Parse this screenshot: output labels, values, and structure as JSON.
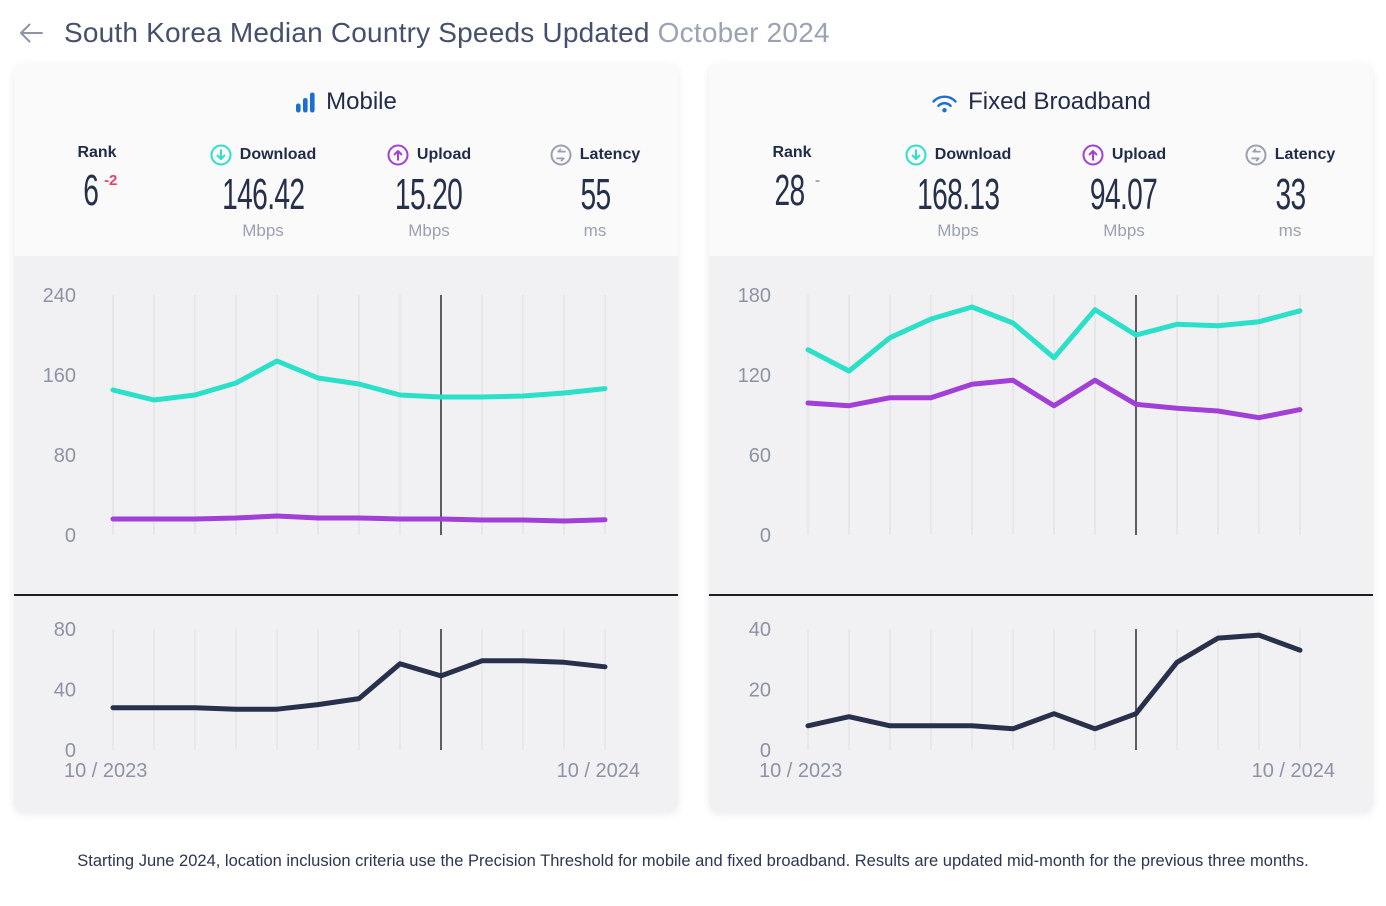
{
  "page": {
    "title_main": "South Korea Median Country Speeds Updated",
    "title_period": "October 2024",
    "footnote": "Starting June 2024, location inclusion criteria use the Precision Threshold for mobile and fixed broadband. Results are updated mid-month for the previous three months."
  },
  "colors": {
    "accent_blue": "#1b6fd0",
    "teal": "#2be0c9",
    "purple": "#a13fd6",
    "latency_navy": "#28304c",
    "rank_change_red": "#e8416a",
    "rank_change_gray": "#9aa0af",
    "grid": "#e4e4e7",
    "axis_label": "#8d93a5",
    "ref_line": "#2e2e2e"
  },
  "panels": [
    {
      "title": "Mobile",
      "stats": [
        {
          "label": "Rank",
          "value": "6",
          "change": "-2",
          "unit": ""
        },
        {
          "label": "Download",
          "value": "146.42",
          "unit": "Mbps"
        },
        {
          "label": "Upload",
          "value": "15.20",
          "unit": "Mbps"
        },
        {
          "label": "Latency",
          "value": "55",
          "unit": "ms"
        }
      ]
    },
    {
      "title": "Fixed Broadband",
      "stats": [
        {
          "label": "Rank",
          "value": "28",
          "change": "-",
          "unit": ""
        },
        {
          "label": "Download",
          "value": "168.13",
          "unit": "Mbps"
        },
        {
          "label": "Upload",
          "value": "94.07",
          "unit": "Mbps"
        },
        {
          "label": "Latency",
          "value": "33",
          "unit": "ms"
        }
      ]
    }
  ],
  "chart_data": [
    {
      "id": "mobile-speeds",
      "type": "line",
      "x": [
        "10/2023",
        "11/2023",
        "12/2023",
        "1/2024",
        "2/2024",
        "3/2024",
        "4/2024",
        "5/2024",
        "6/2024",
        "7/2024",
        "8/2024",
        "9/2024",
        "10/2024"
      ],
      "yticks": [
        240,
        160,
        80,
        0
      ],
      "ylim": [
        0,
        240
      ],
      "ylabel": "Mbps",
      "grid": "vertical-only",
      "legend": "none",
      "ref_line_x": "6/2024",
      "ref_line_index": 8,
      "series": [
        {
          "name": "Download",
          "color": "#2be0c9",
          "values": [
            145,
            135,
            140,
            152,
            174,
            157,
            151,
            140,
            138,
            138,
            139,
            142,
            146.42
          ]
        },
        {
          "name": "Upload",
          "color": "#a13fd6",
          "values": [
            16,
            16,
            16,
            17,
            19,
            17,
            17,
            16,
            16,
            15,
            15,
            14,
            15.2
          ]
        }
      ]
    },
    {
      "id": "mobile-latency",
      "type": "line",
      "x": [
        "10/2023",
        "11/2023",
        "12/2023",
        "1/2024",
        "2/2024",
        "3/2024",
        "4/2024",
        "5/2024",
        "6/2024",
        "7/2024",
        "8/2024",
        "9/2024",
        "10/2024"
      ],
      "x_axis_labels": [
        "10 / 2023",
        "10 / 2024"
      ],
      "yticks": [
        80,
        40,
        0
      ],
      "ylim": [
        0,
        80
      ],
      "ylabel": "ms",
      "grid": "vertical-only",
      "legend": "none",
      "ref_line_x": "6/2024",
      "ref_line_index": 8,
      "series": [
        {
          "name": "Latency",
          "color": "#28304c",
          "values": [
            28,
            28,
            28,
            27,
            27,
            30,
            34,
            57,
            49,
            59,
            59,
            58,
            55
          ]
        }
      ]
    },
    {
      "id": "fixed-speeds",
      "type": "line",
      "x": [
        "10/2023",
        "11/2023",
        "12/2023",
        "1/2024",
        "2/2024",
        "3/2024",
        "4/2024",
        "5/2024",
        "6/2024",
        "7/2024",
        "8/2024",
        "9/2024",
        "10/2024"
      ],
      "yticks": [
        180,
        120,
        60,
        0
      ],
      "ylim": [
        0,
        180
      ],
      "ylabel": "Mbps",
      "grid": "vertical-only",
      "legend": "none",
      "ref_line_x": "6/2024",
      "ref_line_index": 8,
      "series": [
        {
          "name": "Download",
          "color": "#2be0c9",
          "values": [
            139,
            123,
            148,
            162,
            171,
            159,
            133,
            169,
            150,
            158,
            157,
            160,
            168.13
          ]
        },
        {
          "name": "Upload",
          "color": "#a13fd6",
          "values": [
            99,
            97,
            103,
            103,
            113,
            116,
            97,
            116,
            98,
            95,
            93,
            88,
            94.07
          ]
        }
      ]
    },
    {
      "id": "fixed-latency",
      "type": "line",
      "x": [
        "10/2023",
        "11/2023",
        "12/2023",
        "1/2024",
        "2/2024",
        "3/2024",
        "4/2024",
        "5/2024",
        "6/2024",
        "7/2024",
        "8/2024",
        "9/2024",
        "10/2024"
      ],
      "x_axis_labels": [
        "10 / 2023",
        "10 / 2024"
      ],
      "yticks": [
        40,
        20,
        0
      ],
      "ylim": [
        0,
        40
      ],
      "ylabel": "ms",
      "grid": "vertical-only",
      "legend": "none",
      "ref_line_x": "6/2024",
      "ref_line_index": 8,
      "series": [
        {
          "name": "Latency",
          "color": "#28304c",
          "values": [
            8,
            11,
            8,
            8,
            8,
            7,
            12,
            7,
            12,
            29,
            37,
            38,
            33
          ]
        }
      ]
    }
  ]
}
